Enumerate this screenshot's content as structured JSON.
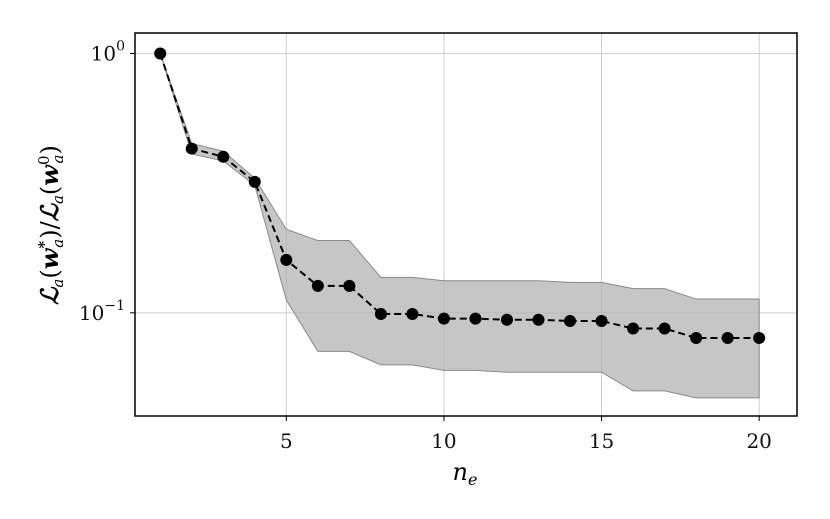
{
  "chart_data": {
    "type": "line",
    "x": [
      1,
      2,
      3,
      4,
      5,
      6,
      7,
      8,
      9,
      10,
      11,
      12,
      13,
      14,
      15,
      16,
      17,
      18,
      19,
      20
    ],
    "series": [
      {
        "values": [
          1.0,
          0.43,
          0.4,
          0.32,
          0.16,
          0.127,
          0.127,
          0.099,
          0.099,
          0.095,
          0.095,
          0.094,
          0.094,
          0.093,
          0.093,
          0.087,
          0.087,
          0.08,
          0.08,
          0.08
        ],
        "band_upper": [
          1.0,
          0.45,
          0.42,
          0.33,
          0.21,
          0.19,
          0.19,
          0.137,
          0.137,
          0.133,
          0.133,
          0.133,
          0.133,
          0.131,
          0.131,
          0.124,
          0.124,
          0.113,
          0.113,
          0.113
        ],
        "band_lower": [
          1.0,
          0.41,
          0.385,
          0.31,
          0.112,
          0.071,
          0.071,
          0.063,
          0.063,
          0.06,
          0.06,
          0.059,
          0.059,
          0.059,
          0.059,
          0.05,
          0.05,
          0.047,
          0.047,
          0.047
        ],
        "line_color": "#000000",
        "band_color": "#b3b3b3"
      }
    ],
    "xlabel": "n_e",
    "ylabel": "ℒ_a(w_a*)/ℒ_a(w_a⁰)",
    "xlim": [
      0.2,
      21.2
    ],
    "ylim": [
      0.04,
      1.2
    ],
    "yscale": "log",
    "xticks": [
      5,
      10,
      15,
      20
    ],
    "xtick_labels": [
      "5",
      "10",
      "15",
      "20"
    ],
    "yticks": [
      0.1,
      1
    ],
    "ytick_labels": [
      {
        "base": "10",
        "exp": "−1"
      },
      {
        "base": "10",
        "exp": "0"
      }
    ],
    "grid": true,
    "legend": false
  }
}
